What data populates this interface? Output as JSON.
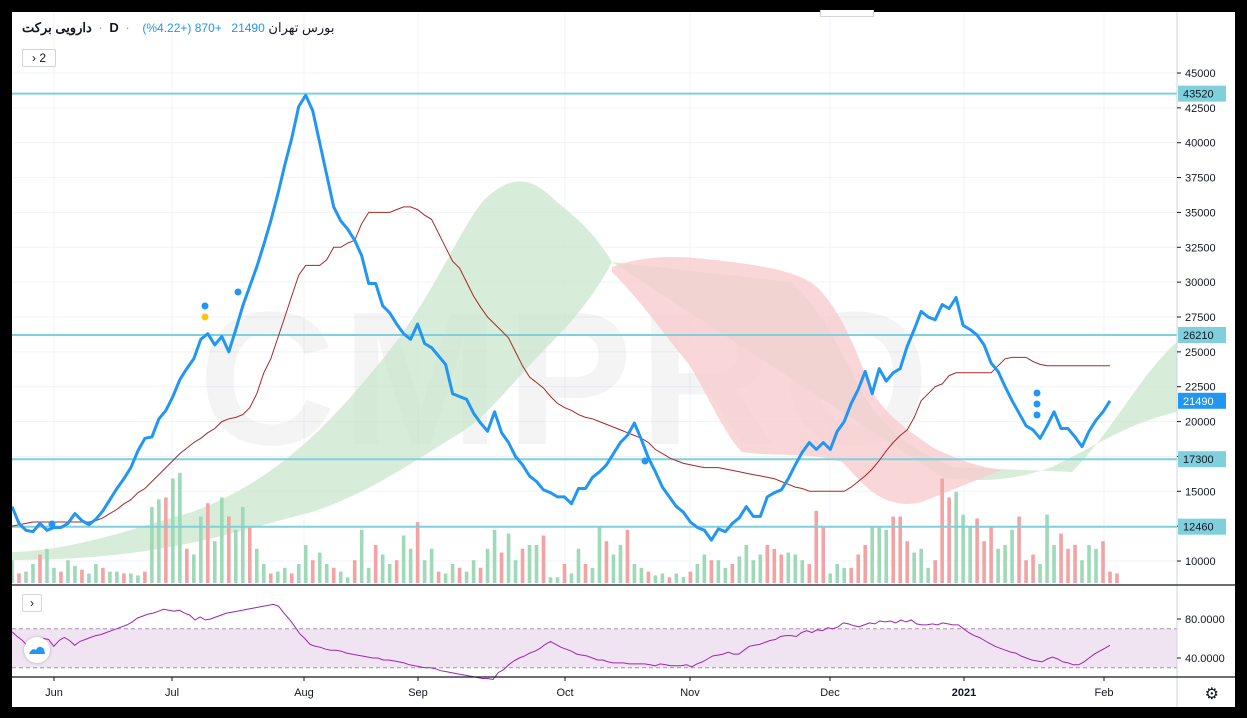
{
  "header": {
    "symbol": "دارویی برکت",
    "interval": "D",
    "exchange": "بورس تهران",
    "last": "21490",
    "change": "+870 (+4.22%)",
    "sep": "·"
  },
  "controls": {
    "indicator_count": "2",
    "collapse_icon": "chevron-right",
    "settings_icon": "gear"
  },
  "watermark": "CMPRO",
  "colors": {
    "price": "#2196f3",
    "base_line": "#a52a2a",
    "hline": "#7fd0dc",
    "vol_up": "#9ed9b8",
    "vol_down": "#f3a3a3",
    "cloud_up": "#c8e6c9",
    "cloud_down": "#f8cdd0",
    "rsi_line": "#9c27b0",
    "rsi_band": "#f1e4f2"
  },
  "chart_data": [
    {
      "type": "line",
      "title": "",
      "x_labels": [
        "Jun",
        "Jul",
        "Aug",
        "Sep",
        "Oct",
        "Nov",
        "Dec",
        "2021",
        "Feb"
      ],
      "y_ticks": [
        10000,
        12500,
        15000,
        17500,
        20000,
        22500,
        25000,
        27500,
        30000,
        32500,
        35000,
        37500,
        40000,
        42500,
        45000
      ],
      "ylim": [
        8500,
        46500
      ],
      "grid": true,
      "horizontal_levels": [
        43520,
        26210,
        17300,
        12460
      ],
      "last_price": 21490,
      "series": [
        {
          "values": [
            13900,
            12700,
            12200,
            12100,
            12700,
            12200,
            12400,
            12400,
            12700,
            13400,
            12900,
            12600,
            13000,
            13600,
            14400,
            15200,
            15900,
            16700,
            17900,
            18800,
            18900,
            20200,
            20800,
            21800,
            23000,
            23800,
            24500,
            25900,
            26300,
            25500,
            26100,
            25000,
            26600,
            28300,
            29700,
            31100,
            32700,
            34400,
            36300,
            38400,
            40300,
            42600,
            43400,
            42300,
            40000,
            37700,
            35400,
            34400,
            33800,
            33000,
            31900,
            29900,
            29900,
            28300,
            27800,
            27000,
            26300,
            25900,
            27000,
            25600,
            25300,
            24700,
            24100,
            22000,
            21800,
            21600,
            20600,
            19900,
            19300,
            20700,
            19200,
            18500,
            17500,
            16900,
            16100,
            15700,
            15100,
            14900,
            14600,
            14600,
            14100,
            15200,
            15200,
            16000,
            16400,
            16900,
            17700,
            18500,
            19000,
            19900,
            18700,
            17400,
            16400,
            15300,
            14600,
            13900,
            13500,
            12800,
            12400,
            12200,
            11500,
            12300,
            12100,
            12700,
            13100,
            13900,
            13200,
            13200,
            14600,
            14900,
            15100,
            15900,
            16900,
            17800,
            18500,
            18000,
            18500,
            18000,
            19300,
            20000,
            21300,
            22300,
            23600,
            22000,
            23800,
            22900,
            23500,
            23800,
            25400,
            26600,
            27900,
            27500,
            27300,
            28400,
            28100,
            28900,
            26900,
            26600,
            26200,
            25500,
            24200,
            23600,
            22500,
            21500,
            20600,
            19700,
            19400,
            18800,
            19700,
            20700,
            19500,
            19500,
            18900,
            18200,
            19300,
            20100,
            20700,
            21490
          ]
        },
        {
          "values": [
            12500,
            12600,
            12700,
            12800,
            12800,
            12800,
            12800,
            12800,
            12800,
            12800,
            12800,
            12800,
            12900,
            13100,
            13400,
            13700,
            14100,
            14400,
            14900,
            15200,
            15700,
            16200,
            16700,
            17200,
            17700,
            18100,
            18500,
            18800,
            19200,
            19500,
            20000,
            20200,
            20300,
            20500,
            21000,
            22000,
            23500,
            24500,
            26000,
            27500,
            29000,
            30500,
            31200,
            31200,
            31200,
            31600,
            32500,
            32500,
            32800,
            33000,
            34200,
            35000,
            35000,
            35000,
            35000,
            35200,
            35400,
            35400,
            35200,
            34800,
            34500,
            33500,
            32500,
            31500,
            31000,
            30000,
            29000,
            28200,
            27500,
            27000,
            26500,
            26000,
            25000,
            24000,
            23200,
            22800,
            22400,
            21800,
            21300,
            21000,
            20800,
            20500,
            20300,
            20200,
            20000,
            19800,
            19600,
            19400,
            19200,
            19000,
            18800,
            18500,
            18000,
            17700,
            17400,
            17200,
            17000,
            16900,
            16800,
            16700,
            16700,
            16700,
            16600,
            16500,
            16400,
            16300,
            16200,
            16100,
            16000,
            15900,
            15700,
            15500,
            15300,
            15200,
            15000,
            15000,
            15000,
            15000,
            15000,
            15000,
            15300,
            15700,
            16100,
            16600,
            17200,
            17900,
            18500,
            19000,
            19400,
            20300,
            21500,
            22000,
            22500,
            22700,
            23300,
            23500,
            23500,
            23500,
            23500,
            23500,
            23500,
            24000,
            24500,
            24600,
            24600,
            24600,
            24300,
            24100,
            24000,
            24000,
            24000,
            24000,
            24000,
            24000,
            24000,
            24000,
            24000,
            24000
          ]
        }
      ]
    },
    {
      "type": "line",
      "title": "",
      "y_ticks": [
        40,
        80
      ],
      "ylim": [
        10,
        100
      ],
      "band": [
        30,
        70
      ],
      "series": [
        {
          "values": [
            67,
            62,
            58,
            52,
            57,
            55,
            60,
            59,
            52,
            58,
            61,
            58,
            53,
            57,
            59,
            61,
            63,
            64,
            66,
            68,
            70,
            72,
            74,
            77,
            81,
            83,
            85,
            86,
            88,
            90,
            89,
            88,
            89,
            86,
            84,
            79,
            82,
            79,
            80,
            82,
            84,
            86,
            87,
            88,
            89,
            90,
            91,
            92,
            93,
            94,
            95,
            93,
            86,
            80,
            73,
            65,
            60,
            54,
            52,
            51,
            49,
            48,
            48,
            47,
            45,
            44,
            43,
            42,
            41,
            40,
            40,
            38,
            38,
            37,
            36,
            35,
            33,
            32,
            31,
            30,
            30,
            29,
            27,
            26,
            25,
            24,
            23,
            22,
            21,
            20,
            19,
            19,
            18,
            25,
            28,
            33,
            37,
            40,
            42,
            45,
            47,
            50,
            54,
            57,
            54,
            51,
            49,
            47,
            44,
            43,
            42,
            40,
            38,
            38,
            36,
            35,
            35,
            35,
            34,
            34,
            34,
            34,
            33,
            32,
            34,
            33,
            32,
            32,
            32,
            33,
            31,
            34,
            36,
            39,
            42,
            43,
            44,
            46,
            44,
            44,
            48,
            52,
            53,
            54,
            56,
            58,
            59,
            62,
            63,
            63,
            62,
            66,
            68,
            66,
            69,
            68,
            71,
            70,
            72,
            76,
            75,
            73,
            72,
            74,
            76,
            75,
            78,
            77,
            78,
            76,
            79,
            77,
            79,
            75,
            74,
            74,
            75,
            74,
            76,
            75,
            74,
            74,
            70,
            66,
            63,
            61,
            58,
            55,
            52,
            50,
            48,
            46,
            45,
            42,
            40,
            38,
            37,
            36,
            39,
            41,
            39,
            36,
            35,
            33,
            33,
            36,
            40,
            44,
            47,
            50,
            53
          ]
        }
      ]
    }
  ]
}
